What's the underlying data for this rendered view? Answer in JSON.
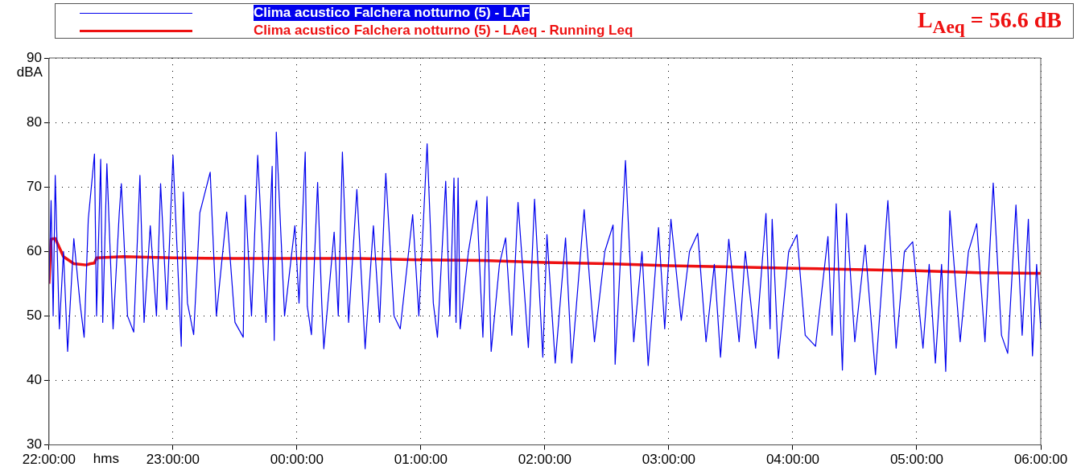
{
  "chart_data": {
    "type": "line",
    "xlabel": "hms",
    "ylabel": "dBA",
    "xlim": [
      "2000-01-01T22:00",
      "2000-01-02T06:00"
    ],
    "xticks": [
      {
        "value": "2000-01-01T22:00",
        "label": "22:00:00"
      },
      {
        "value": "2000-01-01T23:00",
        "label": "23:00:00"
      },
      {
        "value": "2000-01-02T00:00",
        "label": "00:00:00"
      },
      {
        "value": "2000-01-02T01:00",
        "label": "01:00:00"
      },
      {
        "value": "2000-01-02T02:00",
        "label": "02:00:00"
      },
      {
        "value": "2000-01-02T03:00",
        "label": "03:00:00"
      },
      {
        "value": "2000-01-02T04:00",
        "label": "04:00:00"
      },
      {
        "value": "2000-01-02T05:00",
        "label": "05:00:00"
      },
      {
        "value": "2000-01-02T06:00",
        "label": "06:00:00"
      }
    ],
    "ylim": [
      30,
      90
    ],
    "yticks": [
      30,
      40,
      50,
      60,
      70,
      80,
      90
    ],
    "grid": true,
    "legend": "top",
    "marker": "none",
    "line_style": "solid",
    "annotations": [
      "L$_{Aeq}$ = 56.6 dB"
    ],
    "series": [
      {
        "name": "Clima acustico Falchera notturno (5) - LAF",
        "color": "#0000ee",
        "x": [
          "2000-01-01T22:00",
          "2000-01-01T22:01",
          "2000-01-01T22:02",
          "2000-01-01T22:03",
          "2000-01-01T22:05",
          "2000-01-01T22:07",
          "2000-01-01T22:09",
          "2000-01-01T22:12",
          "2000-01-01T22:15",
          "2000-01-01T22:17",
          "2000-01-01T22:19",
          "2000-01-01T22:22",
          "2000-01-01T22:23",
          "2000-01-01T22:25",
          "2000-01-01T22:26",
          "2000-01-01T22:28",
          "2000-01-01T22:31",
          "2000-01-01T22:34",
          "2000-01-01T22:35",
          "2000-01-01T22:38",
          "2000-01-01T22:41",
          "2000-01-01T22:44",
          "2000-01-01T22:46",
          "2000-01-01T22:49",
          "2000-01-01T22:52",
          "2000-01-01T22:54",
          "2000-01-01T22:57",
          "2000-01-01T23:00",
          "2000-01-01T23:04",
          "2000-01-01T23:05",
          "2000-01-01T23:07",
          "2000-01-01T23:10",
          "2000-01-01T23:13",
          "2000-01-01T23:18",
          "2000-01-01T23:21",
          "2000-01-01T23:26",
          "2000-01-01T23:30",
          "2000-01-01T23:34",
          "2000-01-01T23:35",
          "2000-01-01T23:38",
          "2000-01-01T23:41",
          "2000-01-01T23:45",
          "2000-01-01T23:48",
          "2000-01-01T23:49",
          "2000-01-01T23:50",
          "2000-01-01T23:54",
          "2000-01-01T23:59",
          "2000-01-02T00:01",
          "2000-01-02T00:04",
          "2000-01-02T00:05",
          "2000-01-02T00:07",
          "2000-01-02T00:10",
          "2000-01-02T00:12",
          "2000-01-02T00:13",
          "2000-01-02T00:18",
          "2000-01-02T00:20",
          "2000-01-02T00:22",
          "2000-01-02T00:25",
          "2000-01-02T00:29",
          "2000-01-02T00:33",
          "2000-01-02T00:37",
          "2000-01-02T00:40",
          "2000-01-02T00:43",
          "2000-01-02T00:47",
          "2000-01-02T00:50",
          "2000-01-02T00:56",
          "2000-01-02T00:59",
          "2000-01-02T01:03",
          "2000-01-02T01:06",
          "2000-01-02T01:08",
          "2000-01-02T01:12",
          "2000-01-02T01:14",
          "2000-01-02T01:16",
          "2000-01-02T01:17",
          "2000-01-02T01:18",
          "2000-01-02T01:19",
          "2000-01-02T01:23",
          "2000-01-02T01:27",
          "2000-01-02T01:30",
          "2000-01-02T01:32",
          "2000-01-02T01:34",
          "2000-01-02T01:38",
          "2000-01-02T01:41",
          "2000-01-02T01:44",
          "2000-01-02T01:47",
          "2000-01-02T01:52",
          "2000-01-02T01:55",
          "2000-01-02T01:59",
          "2000-01-02T02:01",
          "2000-01-02T02:05",
          "2000-01-02T02:10",
          "2000-01-02T02:13",
          "2000-01-02T02:19",
          "2000-01-02T02:24",
          "2000-01-02T02:29",
          "2000-01-02T02:33",
          "2000-01-02T02:34",
          "2000-01-02T02:39",
          "2000-01-02T02:43",
          "2000-01-02T02:47",
          "2000-01-02T02:50",
          "2000-01-02T02:55",
          "2000-01-02T02:58",
          "2000-01-02T03:01",
          "2000-01-02T03:06",
          "2000-01-02T03:10",
          "2000-01-02T03:14",
          "2000-01-02T03:18",
          "2000-01-02T03:22",
          "2000-01-02T03:25",
          "2000-01-02T03:29",
          "2000-01-02T03:34",
          "2000-01-02T03:37",
          "2000-01-02T03:42",
          "2000-01-02T03:47",
          "2000-01-02T03:49",
          "2000-01-02T03:50",
          "2000-01-02T03:53",
          "2000-01-02T03:58",
          "2000-01-02T04:02",
          "2000-01-02T04:06",
          "2000-01-02T04:11",
          "2000-01-02T04:17",
          "2000-01-02T04:19",
          "2000-01-02T04:21",
          "2000-01-02T04:24",
          "2000-01-02T04:26",
          "2000-01-02T04:30",
          "2000-01-02T04:35",
          "2000-01-02T04:40",
          "2000-01-02T04:46",
          "2000-01-02T04:50",
          "2000-01-02T04:54",
          "2000-01-02T04:58",
          "2000-01-02T05:03",
          "2000-01-02T05:06",
          "2000-01-02T05:09",
          "2000-01-02T05:12",
          "2000-01-02T05:14",
          "2000-01-02T05:16",
          "2000-01-02T05:21",
          "2000-01-02T05:25",
          "2000-01-02T05:29",
          "2000-01-02T05:33",
          "2000-01-02T05:37",
          "2000-01-02T05:41",
          "2000-01-02T05:44",
          "2000-01-02T05:48",
          "2000-01-02T05:51",
          "2000-01-02T05:54",
          "2000-01-02T05:56",
          "2000-01-02T05:58",
          "2000-01-02T06:00"
        ],
        "values": [
          55,
          67.9,
          50,
          71.8,
          48,
          60,
          44.5,
          62,
          52,
          46.7,
          65,
          75.1,
          50,
          74.3,
          49,
          73.6,
          48,
          66,
          70.5,
          50,
          47.5,
          71.8,
          49,
          64,
          50,
          70.5,
          51,
          74.9,
          45.3,
          69.2,
          52,
          47.1,
          66,
          72.3,
          50,
          66.1,
          49,
          46.7,
          68.7,
          50,
          74.9,
          49,
          73.2,
          46.2,
          78.5,
          50,
          64,
          52,
          75.4,
          51.5,
          47.1,
          70.7,
          52,
          44.9,
          63,
          50,
          75.4,
          49,
          69.6,
          44.9,
          64,
          49,
          72.1,
          50,
          48.0,
          65.7,
          50,
          76.7,
          52,
          46.7,
          70.9,
          50,
          71.4,
          49,
          71.4,
          48.0,
          60,
          67.9,
          46.7,
          68.5,
          44.5,
          58,
          62.1,
          47,
          67.6,
          45.1,
          68.1,
          43.6,
          62.6,
          42.7,
          62.1,
          42.7,
          66.5,
          46,
          60,
          64.1,
          42.5,
          74.1,
          46,
          60,
          42.3,
          63.7,
          48,
          65.0,
          49.3,
          60,
          62.8,
          46,
          58,
          43.6,
          61.9,
          46,
          60,
          45,
          65.9,
          48,
          65.0,
          43.4,
          60,
          62.6,
          47,
          45.3,
          62.3,
          47,
          67.4,
          41.6,
          65.9,
          46,
          61,
          40.9,
          67.9,
          45,
          60,
          61.5,
          45,
          58,
          42.7,
          58,
          41.4,
          66.3,
          46,
          60,
          64.3,
          46,
          70.6,
          47,
          44.2,
          67.2,
          47,
          65.0,
          43.8,
          58,
          48
        ]
      },
      {
        "name": "Clima acustico Falchera notturno (5) - LAeq - Running Leq",
        "color": "#ee1111",
        "x": [
          "2000-01-01T22:00",
          "2000-01-01T22:01",
          "2000-01-01T22:03",
          "2000-01-01T22:07",
          "2000-01-01T22:12",
          "2000-01-01T22:18",
          "2000-01-01T22:20",
          "2000-01-01T22:22",
          "2000-01-01T22:23",
          "2000-01-01T22:36",
          "2000-01-01T23:00",
          "2000-01-01T23:30",
          "2000-01-02T00:00",
          "2000-01-02T00:30",
          "2000-01-02T01:00",
          "2000-01-02T01:30",
          "2000-01-02T02:00",
          "2000-01-02T02:30",
          "2000-01-02T03:00",
          "2000-01-02T03:30",
          "2000-01-02T04:00",
          "2000-01-02T04:30",
          "2000-01-02T05:00",
          "2000-01-02T05:30",
          "2000-01-02T06:00"
        ],
        "values": [
          55,
          61.9,
          62,
          59.2,
          58.1,
          57.9,
          58.1,
          58.2,
          59.0,
          59.2,
          59.0,
          58.9,
          58.9,
          58.9,
          58.7,
          58.6,
          58.3,
          58.1,
          57.8,
          57.6,
          57.4,
          57.2,
          57.0,
          56.7,
          56.6
        ]
      }
    ]
  }
}
